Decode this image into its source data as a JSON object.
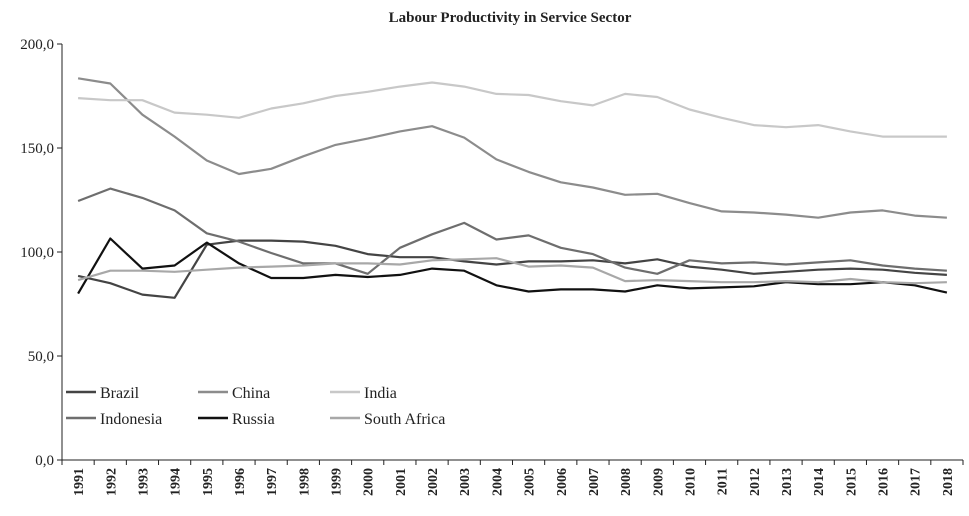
{
  "chart_data": {
    "type": "line",
    "title": "Labour Productivity in Service Sector",
    "xlabel": "",
    "ylabel": "",
    "ylim": [
      0,
      200
    ],
    "yticks": [
      "0,0",
      "50,0",
      "100,0",
      "150,0",
      "200,0"
    ],
    "ytick_values": [
      0,
      50,
      100,
      150,
      200
    ],
    "grid": false,
    "legend_position": "bottom-left",
    "x": [
      "1991",
      "1992",
      "1993",
      "1994",
      "1995",
      "1996",
      "1997",
      "1998",
      "1999",
      "2000",
      "2001",
      "2002",
      "2003",
      "2004",
      "2005",
      "2006",
      "2007",
      "2008",
      "2009",
      "2010",
      "2011",
      "2012",
      "2013",
      "2014",
      "2015",
      "2016",
      "2017",
      "2018"
    ],
    "series": [
      {
        "name": "Brazil",
        "color": "#444444",
        "values": [
          88.5,
          85.0,
          79.5,
          78.0,
          103.5,
          105.5,
          105.5,
          105.0,
          103.0,
          99.0,
          97.5,
          97.5,
          95.5,
          94.0,
          95.5,
          95.5,
          96.0,
          94.5,
          96.5,
          93.0,
          91.5,
          89.5,
          90.5,
          91.5,
          92.0,
          91.5,
          90.0,
          89.0
        ]
      },
      {
        "name": "China",
        "color": "#8c8c8c",
        "values": [
          183.5,
          181.0,
          166.0,
          155.5,
          144.0,
          137.5,
          140.0,
          146.0,
          151.5,
          154.5,
          158.0,
          160.5,
          155.0,
          144.5,
          138.5,
          133.5,
          131.0,
          127.5,
          128.0,
          123.5,
          119.5,
          119.0,
          118.0,
          116.5,
          119.0,
          120.0,
          117.5,
          116.5
        ]
      },
      {
        "name": "India",
        "color": "#c8c8c8",
        "values": [
          174.0,
          173.0,
          173.0,
          167.0,
          166.0,
          164.5,
          169.0,
          171.5,
          175.0,
          177.0,
          179.5,
          181.5,
          179.5,
          176.0,
          175.5,
          172.5,
          170.5,
          176.0,
          174.5,
          168.5,
          164.5,
          161.0,
          160.0,
          161.0,
          158.0,
          155.5,
          155.5,
          155.5
        ]
      },
      {
        "name": "Indonesia",
        "color": "#6e6e6e",
        "values": [
          124.5,
          130.5,
          126.0,
          120.0,
          109.0,
          105.0,
          99.5,
          94.5,
          94.5,
          89.5,
          102.0,
          108.5,
          114.0,
          106.0,
          108.0,
          102.0,
          99.0,
          92.5,
          89.5,
          96.0,
          94.5,
          95.0,
          94.0,
          95.0,
          96.0,
          93.5,
          92.0,
          91.0
        ]
      },
      {
        "name": "Russia",
        "color": "#111111",
        "values": [
          80.0,
          106.5,
          92.0,
          93.5,
          104.5,
          94.5,
          87.5,
          87.5,
          89.0,
          88.0,
          89.0,
          92.0,
          91.0,
          84.0,
          81.0,
          82.0,
          82.0,
          81.0,
          84.0,
          82.5,
          83.0,
          83.5,
          85.5,
          84.5,
          84.5,
          85.5,
          84.0,
          80.5
        ]
      },
      {
        "name": "South Africa",
        "color": "#a8a8a8",
        "values": [
          86.5,
          91.0,
          91.0,
          90.5,
          91.5,
          92.5,
          93.0,
          93.5,
          94.5,
          94.5,
          94.0,
          96.0,
          96.5,
          97.0,
          93.0,
          93.5,
          92.5,
          86.0,
          86.5,
          86.0,
          85.5,
          85.5,
          86.0,
          85.5,
          87.0,
          85.5,
          85.0,
          85.5
        ]
      }
    ]
  }
}
